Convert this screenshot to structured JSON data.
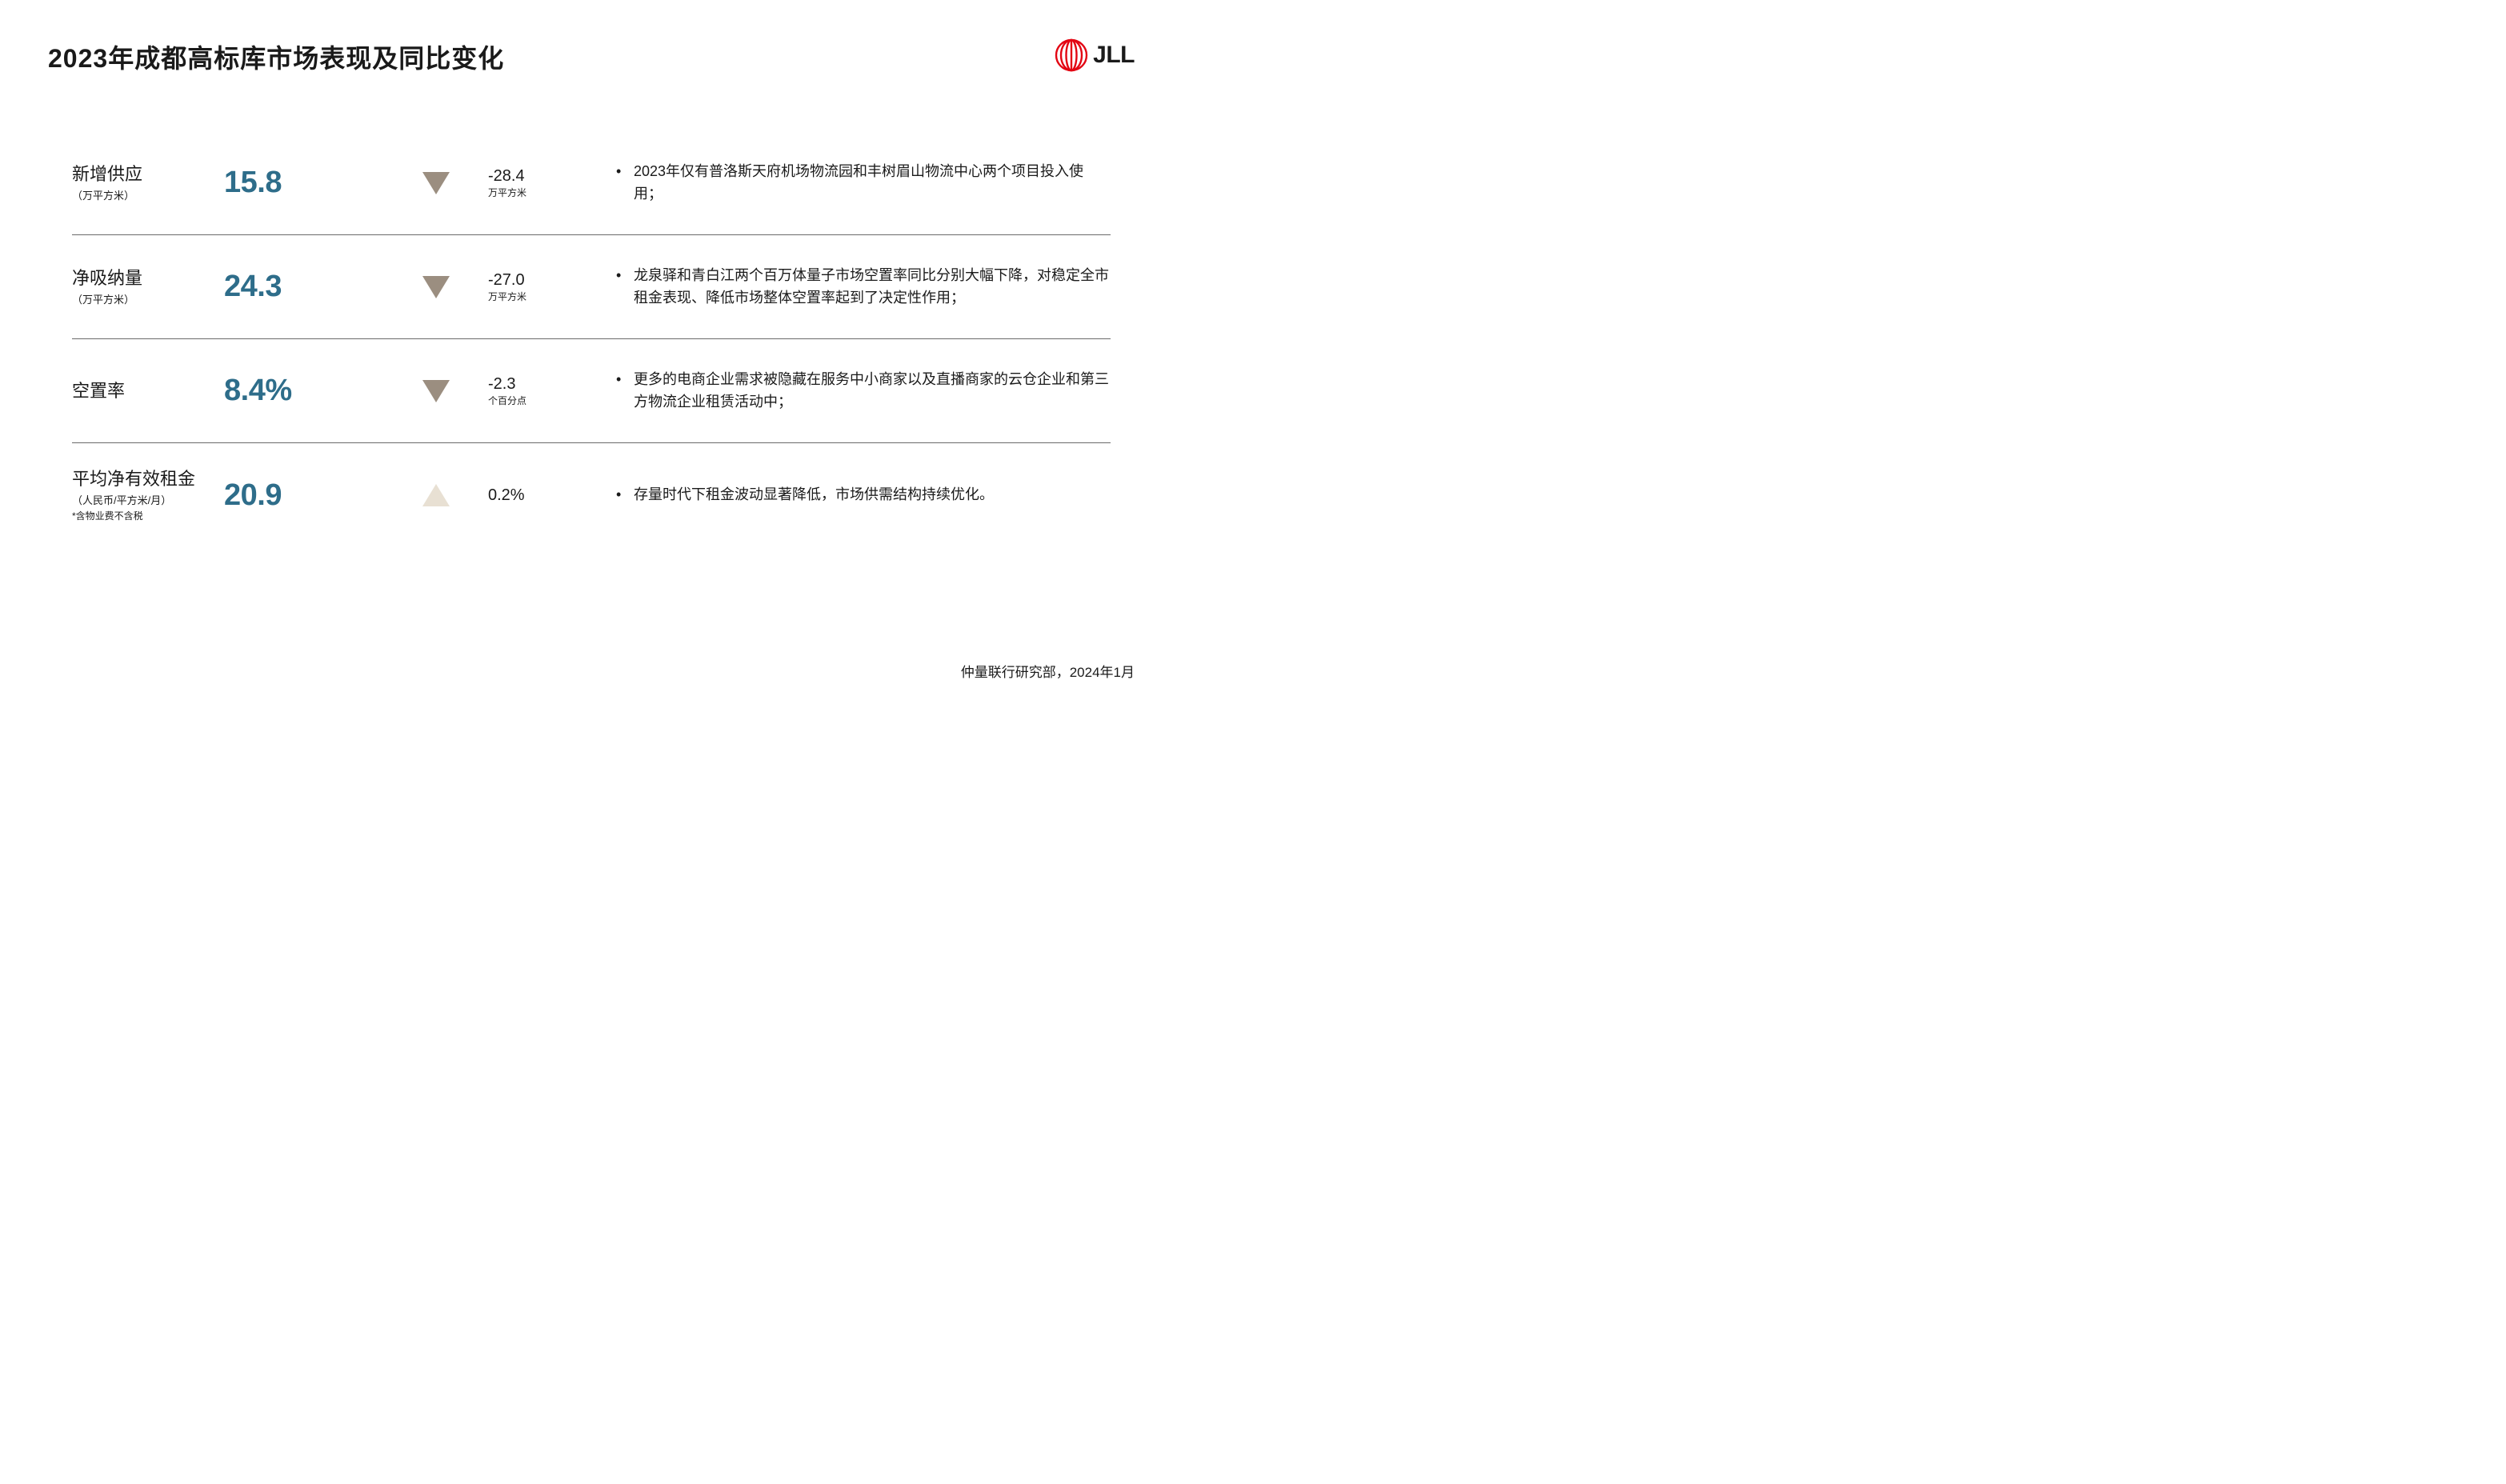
{
  "theme": {
    "brand_red": "#e30613",
    "value_color": "#2e6d8a",
    "arrow_down_fill": "#9b8e80",
    "arrow_up_fill": "#e8e0d3",
    "text_color": "#1a1a1a",
    "divider_color": "#6b6b6b",
    "background": "#ffffff",
    "title_fontsize": 32,
    "value_fontsize": 38,
    "label_fontsize": 22,
    "note_fontsize": 18
  },
  "title": "2023年成都高标库市场表现及同比变化",
  "logo_text": "JLL",
  "rows": [
    {
      "label": "新增供应",
      "label_unit": "（万平方米）",
      "label_note": "",
      "value": "15.8",
      "direction": "down",
      "delta_value": "-28.4",
      "delta_unit": "万平方米",
      "note": "2023年仅有普洛斯天府机场物流园和丰树眉山物流中心两个项目投入使用；"
    },
    {
      "label": "净吸纳量",
      "label_unit": "（万平方米）",
      "label_note": "",
      "value": "24.3",
      "direction": "down",
      "delta_value": "-27.0",
      "delta_unit": "万平方米",
      "note": "龙泉驿和青白江两个百万体量子市场空置率同比分别大幅下降，对稳定全市租金表现、降低市场整体空置率起到了决定性作用；"
    },
    {
      "label": "空置率",
      "label_unit": "",
      "label_note": "",
      "value": "8.4%",
      "direction": "down",
      "delta_value": "-2.3",
      "delta_unit": "个百分点",
      "note": "更多的电商企业需求被隐藏在服务中小商家以及直播商家的云仓企业和第三方物流企业租赁活动中；"
    },
    {
      "label": "平均净有效租金",
      "label_unit": "（人民币/平方米/月）",
      "label_note": "*含物业费不含税",
      "value": "20.9",
      "direction": "up",
      "delta_value": "0.2%",
      "delta_unit": "",
      "note": "存量时代下租金波动显著降低，市场供需结构持续优化。"
    }
  ],
  "footer": "仲量联行研究部，2024年1月"
}
